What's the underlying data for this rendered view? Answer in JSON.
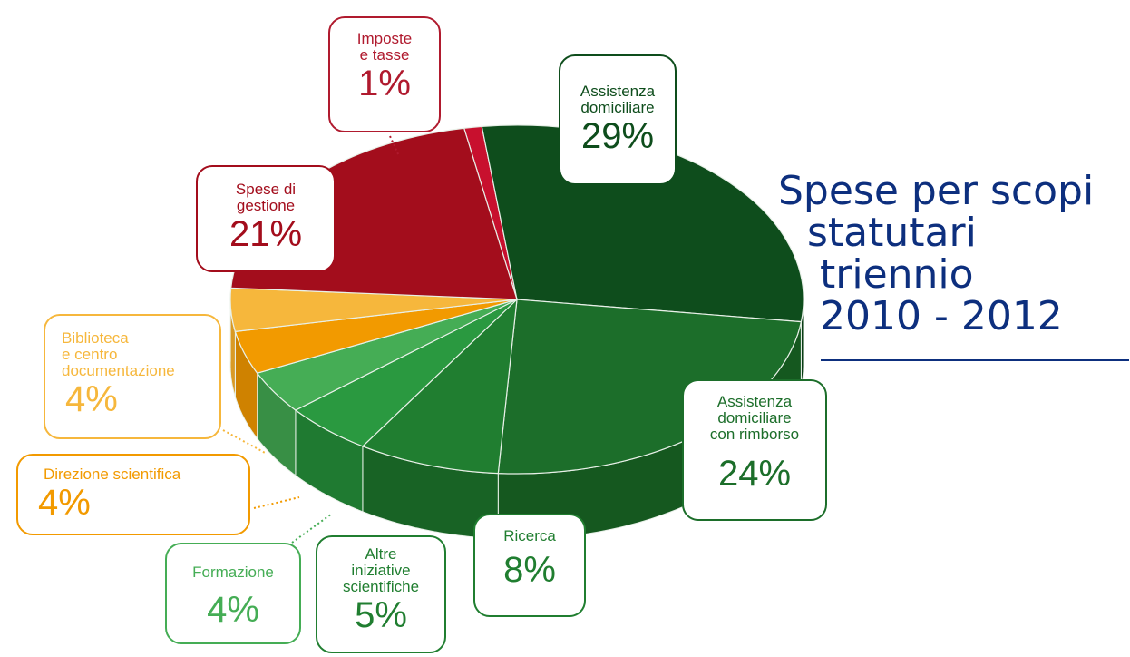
{
  "title": {
    "line1": "Spese per scopi",
    "line2": "statutari",
    "line3": "triennio",
    "line4": "2010 - 2012"
  },
  "chart_data": {
    "type": "pie",
    "title": "Spese per scopi statutari triennio 2010 - 2012",
    "slices": [
      {
        "label": "Imposte e tasse",
        "value": 1,
        "display": "1%",
        "color": "#c8102e",
        "side_color": "#8f0c20"
      },
      {
        "label": "Assistenza domiciliare",
        "value": 29,
        "display": "29%",
        "color": "#0e4d1c",
        "side_color": "#0a3c15"
      },
      {
        "label": "Assistenza domiciliare con rimborso",
        "value": 24,
        "display": "24%",
        "color": "#1c6e2a",
        "side_color": "#15581f"
      },
      {
        "label": "Ricerca",
        "value": 8,
        "display": "8%",
        "color": "#207e30",
        "side_color": "#186325"
      },
      {
        "label": "Altre iniziative scientifiche",
        "value": 5,
        "display": "5%",
        "color": "#2a9940",
        "side_color": "#1f7a31"
      },
      {
        "label": "Formazione",
        "value": 4,
        "display": "4%",
        "color": "#45ad55",
        "side_color": "#388f45"
      },
      {
        "label": "Direzione scientifica",
        "value": 4,
        "display": "4%",
        "color": "#f29a00",
        "side_color": "#cf8200"
      },
      {
        "label": "Biblioteca e centro documentazione",
        "value": 4,
        "display": "4%",
        "color": "#f6b73c",
        "side_color": "#d99a25"
      },
      {
        "label": "Spese di gestione",
        "value": 21,
        "display": "21%",
        "color": "#a30d1c",
        "side_color": "#7d0915"
      }
    ]
  },
  "labels": {
    "imposte": {
      "name": "Imposte\ne tasse",
      "pct": "1%",
      "color": "#b01a2e"
    },
    "assistenza": {
      "name": "Assistenza\ndomiciliare",
      "pct": "29%",
      "color": "#0e4d1c"
    },
    "rimborso": {
      "name": "Assistenza\ndomiciliare\ncon rimborso",
      "pct": "24%",
      "color": "#1c6e2a"
    },
    "ricerca": {
      "name": "Ricerca",
      "pct": "8%",
      "color": "#207e30"
    },
    "altre": {
      "name": "Altre\niniziative\nscientifiche",
      "pct": "5%",
      "color": "#207e30"
    },
    "formazione": {
      "name": "Formazione",
      "pct": "4%",
      "color": "#45ad55"
    },
    "direzione": {
      "name": "Direzione scientifica",
      "pct": "4%",
      "color": "#f29a00"
    },
    "biblioteca": {
      "name": "Biblioteca\ne centro\ndocumentazione",
      "pct": "4%",
      "color": "#f6b73c"
    },
    "gestione": {
      "name": "Spese di\ngestione",
      "pct": "21%",
      "color": "#a30d1c"
    }
  }
}
